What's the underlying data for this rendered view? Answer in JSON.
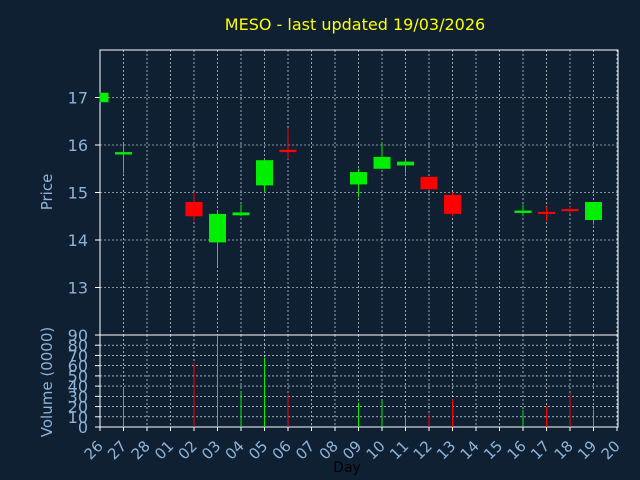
{
  "chart_data": [
    {
      "type": "candlestick",
      "title": "MESO - last updated 19/03/2026",
      "ylabel": "Price",
      "ylim": [
        12,
        18
      ],
      "yticks": [
        13,
        14,
        15,
        16,
        17
      ],
      "grid": true,
      "x_ticks": [
        "26",
        "27",
        "28",
        "01",
        "02",
        "03",
        "04",
        "05",
        "06",
        "07",
        "08",
        "09",
        "10",
        "11",
        "12",
        "13",
        "14",
        "15",
        "16",
        "17",
        "18",
        "19",
        "20"
      ],
      "candles": [
        {
          "day": "26",
          "open": 16.9,
          "high": 17.1,
          "low": 16.9,
          "close": 17.1
        },
        {
          "day": "27",
          "open": 15.8,
          "high": 16.05,
          "low": 15.4,
          "close": 15.85
        },
        {
          "day": "02",
          "open": 14.8,
          "high": 15.0,
          "low": 14.4,
          "close": 14.5
        },
        {
          "day": "03",
          "open": 13.95,
          "high": 14.6,
          "low": 13.45,
          "close": 14.55
        },
        {
          "day": "04",
          "open": 14.52,
          "high": 14.75,
          "low": 14.5,
          "close": 14.58
        },
        {
          "day": "05",
          "open": 15.15,
          "high": 15.7,
          "low": 15.0,
          "close": 15.68
        },
        {
          "day": "06",
          "open": 15.9,
          "high": 16.35,
          "low": 15.7,
          "close": 15.85
        },
        {
          "day": "09",
          "open": 15.17,
          "high": 15.5,
          "low": 14.9,
          "close": 15.43
        },
        {
          "day": "10",
          "open": 15.5,
          "high": 16.05,
          "low": 15.5,
          "close": 15.75
        },
        {
          "day": "11",
          "open": 15.57,
          "high": 15.7,
          "low": 15.4,
          "close": 15.65
        },
        {
          "day": "12",
          "open": 15.33,
          "high": 15.33,
          "low": 15.05,
          "close": 15.07
        },
        {
          "day": "13",
          "open": 14.95,
          "high": 15.0,
          "low": 14.5,
          "close": 14.55
        },
        {
          "day": "16",
          "open": 14.57,
          "high": 14.75,
          "low": 14.5,
          "close": 14.62
        },
        {
          "day": "17",
          "open": 14.57,
          "high": 14.7,
          "low": 14.4,
          "close": 14.53
        },
        {
          "day": "18",
          "open": 14.63,
          "high": 14.7,
          "low": 14.55,
          "close": 14.6
        },
        {
          "day": "19",
          "open": 14.42,
          "high": 14.8,
          "low": 14.32,
          "close": 14.8
        }
      ],
      "colors": {
        "up": "#00ee00",
        "down": "#ff0000",
        "grid": "#ffffff",
        "axis": "#ffffff",
        "text": "#8eb4d8",
        "title": "#ffff00",
        "background": "#0f2033"
      }
    },
    {
      "type": "bar",
      "xlabel": "Day",
      "ylabel": "Volume (0000)",
      "ylim": [
        0,
        90
      ],
      "yticks": [
        0,
        10,
        20,
        30,
        40,
        50,
        60,
        70,
        80,
        90
      ],
      "categories": [
        "26",
        "27",
        "02",
        "03",
        "04",
        "05",
        "06",
        "09",
        "10",
        "11",
        "12",
        "13",
        "16",
        "17",
        "18",
        "19"
      ],
      "values": [
        0,
        38,
        63,
        90,
        34,
        68,
        32,
        24,
        26,
        10,
        13,
        27,
        17,
        20,
        33,
        17
      ],
      "directions": [
        "up",
        "up",
        "down",
        "up",
        "up",
        "up",
        "down",
        "up",
        "up",
        "up",
        "down",
        "down",
        "up",
        "down",
        "down",
        "up"
      ]
    }
  ]
}
